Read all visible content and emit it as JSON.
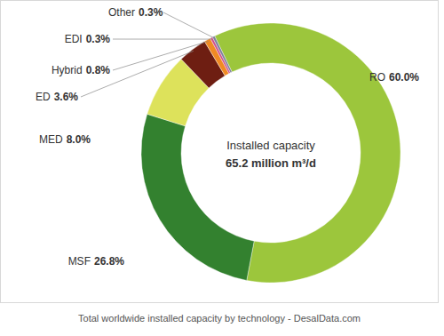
{
  "chart_data": {
    "type": "pie",
    "categories": [
      "RO",
      "MSF",
      "MED",
      "ED",
      "Hybrid",
      "EDI",
      "Other"
    ],
    "values": [
      60.0,
      26.8,
      8.0,
      3.6,
      0.8,
      0.3,
      0.3
    ],
    "value_labels": [
      "60.0%",
      "26.8%",
      "8.0%",
      "3.6%",
      "0.8%",
      "0.3%",
      "0.3%"
    ],
    "colors": [
      "#9cc63c",
      "#33812f",
      "#dde25b",
      "#6e1e12",
      "#f08a24",
      "#d0508a",
      "#7d7f9c"
    ],
    "data_labels": true,
    "annotations": [
      "Installed capacity",
      "65.2 million m³/d"
    ],
    "caption": "Total worldwide installed capacity by technology - DesalData.com"
  }
}
